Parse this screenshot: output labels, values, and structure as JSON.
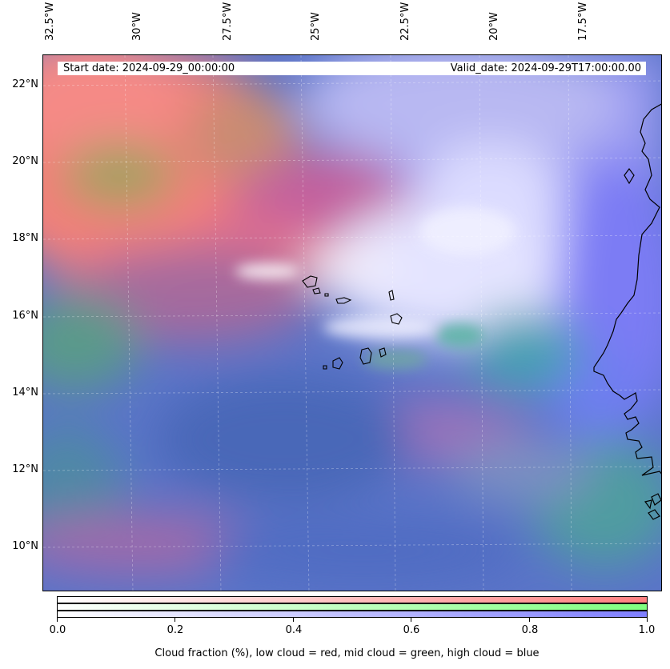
{
  "map": {
    "start_date": "Start date: 2024-09-29_00:00:00",
    "valid_date": "Valid_date: 2024-09-29T17:00:00.00",
    "lon_labels": [
      "32.5°W",
      "30°W",
      "27.5°W",
      "25°W",
      "22.5°W",
      "20°W",
      "17.5°W"
    ],
    "lat_labels": [
      "22°N",
      "20°N",
      "18°N",
      "16°N",
      "14°N",
      "12°N",
      "10°N"
    ],
    "colors": {
      "low_cloud": "#ff7f7f",
      "mid_cloud": "#7fff7f",
      "high_cloud": "#7f7fff",
      "coastline": "#000000"
    }
  },
  "colorbar": {
    "ticks": [
      "0.0",
      "0.2",
      "0.4",
      "0.6",
      "0.8",
      "1.0"
    ],
    "label": "Cloud fraction (%), low cloud = red, mid cloud = green, high cloud = blue"
  }
}
